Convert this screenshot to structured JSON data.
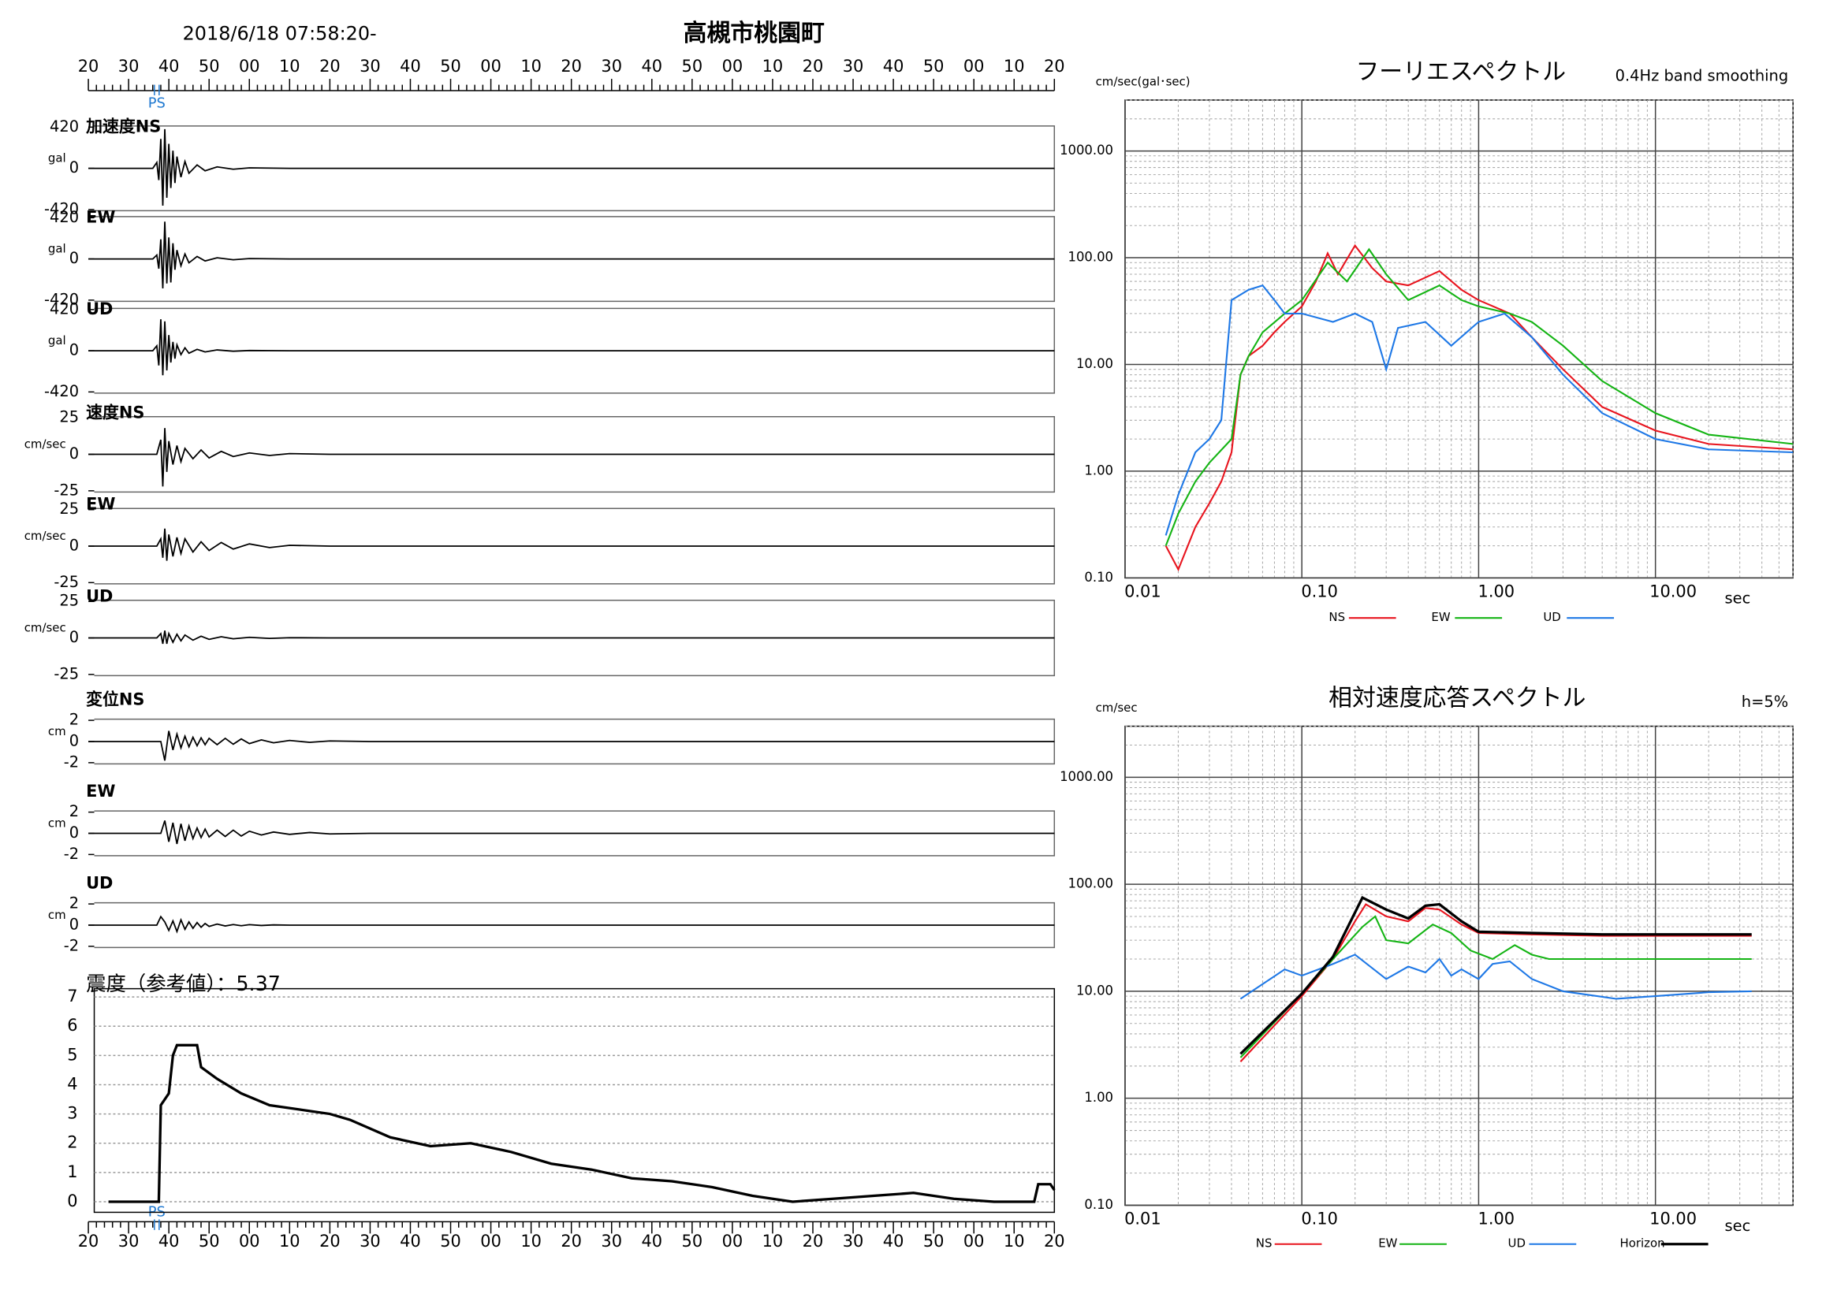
{
  "header": {
    "datetime": "2018/6/18 07:58:20-",
    "station": "高槻市桃園町"
  },
  "chart_data": [
    {
      "type": "time_axis",
      "xlim": [
        0,
        240
      ],
      "xticks": [
        {
          "value": 0,
          "label": "20"
        },
        {
          "value": 10,
          "label": "30"
        },
        {
          "value": 20,
          "label": "40"
        },
        {
          "value": 30,
          "label": "50"
        },
        {
          "value": 40,
          "label": "00"
        },
        {
          "value": 50,
          "label": "10"
        },
        {
          "value": 60,
          "label": "20"
        },
        {
          "value": 70,
          "label": "30"
        },
        {
          "value": 80,
          "label": "40"
        },
        {
          "value": 90,
          "label": "50"
        },
        {
          "value": 100,
          "label": "00"
        },
        {
          "value": 110,
          "label": "10"
        },
        {
          "value": 120,
          "label": "20"
        },
        {
          "value": 130,
          "label": "30"
        },
        {
          "value": 140,
          "label": "40"
        },
        {
          "value": 150,
          "label": "50"
        },
        {
          "value": 160,
          "label": "00"
        },
        {
          "value": 170,
          "label": "10"
        },
        {
          "value": 180,
          "label": "20"
        },
        {
          "value": 190,
          "label": "30"
        },
        {
          "value": 200,
          "label": "40"
        },
        {
          "value": 210,
          "label": "50"
        },
        {
          "value": 220,
          "label": "00"
        },
        {
          "value": 230,
          "label": "10"
        },
        {
          "value": 240,
          "label": "20"
        }
      ],
      "minor_ticks": true,
      "ps_label": "PS",
      "ps_x": 17,
      "ps_color": "#1e78d0"
    },
    {
      "type": "waveform",
      "title": "加速度NS",
      "y_label": "gal",
      "ylim": [
        -420,
        420
      ],
      "yticks": [
        420,
        0,
        -420
      ],
      "color": "#000000",
      "x": [
        0,
        16,
        17,
        17.5,
        18,
        18.5,
        19,
        19.5,
        20,
        20.5,
        21,
        21.5,
        22,
        23,
        24,
        25,
        27,
        29,
        32,
        36,
        40,
        50,
        240
      ],
      "values": [
        0,
        0,
        60,
        -120,
        300,
        -380,
        400,
        -300,
        250,
        -200,
        180,
        -150,
        120,
        -90,
        70,
        -50,
        35,
        -25,
        15,
        -10,
        5,
        0,
        0
      ]
    },
    {
      "type": "waveform",
      "title": "EW",
      "y_label": "gal",
      "ylim": [
        -420,
        420
      ],
      "yticks": [
        420,
        0,
        -420
      ],
      "color": "#000000",
      "x": [
        0,
        16,
        17,
        17.5,
        18,
        18.5,
        19,
        19.5,
        20,
        20.5,
        21,
        21.5,
        22,
        23,
        24,
        25,
        27,
        29,
        32,
        36,
        40,
        50,
        240
      ],
      "values": [
        0,
        0,
        40,
        -100,
        200,
        -300,
        380,
        -250,
        220,
        -240,
        160,
        -110,
        90,
        -70,
        50,
        -40,
        25,
        -20,
        12,
        -8,
        4,
        0,
        0
      ]
    },
    {
      "type": "waveform",
      "title": "UD",
      "y_label": "gal",
      "ylim": [
        -420,
        420
      ],
      "yticks": [
        420,
        0,
        -420
      ],
      "color": "#000000",
      "x": [
        0,
        16,
        17,
        17.5,
        18,
        18.5,
        19,
        19.5,
        20,
        20.5,
        21,
        21.5,
        22,
        23,
        24,
        25,
        27,
        29,
        32,
        36,
        40,
        50,
        240
      ],
      "values": [
        0,
        0,
        50,
        -150,
        320,
        -250,
        300,
        -200,
        160,
        -120,
        90,
        -80,
        60,
        -40,
        30,
        -25,
        15,
        -12,
        8,
        -5,
        3,
        0,
        0
      ]
    },
    {
      "type": "waveform",
      "title": "速度NS",
      "y_label": "cm/sec",
      "ylim": [
        -25,
        25
      ],
      "yticks": [
        25,
        0,
        -25
      ],
      "color": "#000000",
      "x": [
        0,
        17,
        18,
        18.5,
        19,
        19.5,
        20,
        21,
        22,
        23,
        24,
        26,
        28,
        30,
        33,
        36,
        40,
        45,
        50,
        60,
        240
      ],
      "values": [
        0,
        0,
        10,
        -22,
        18,
        -12,
        9,
        -7,
        6,
        -5,
        4,
        -3,
        3,
        -2.5,
        2,
        -1.5,
        1,
        -0.8,
        0.5,
        0,
        0
      ]
    },
    {
      "type": "waveform",
      "title": "EW",
      "y_label": "cm/sec",
      "ylim": [
        -25,
        25
      ],
      "yticks": [
        25,
        0,
        -25
      ],
      "color": "#000000",
      "x": [
        0,
        17,
        18,
        18.5,
        19,
        19.5,
        20,
        21,
        22,
        23,
        24,
        26,
        28,
        30,
        33,
        36,
        40,
        45,
        50,
        60,
        240
      ],
      "values": [
        0,
        0,
        5,
        -8,
        12,
        -10,
        8,
        -7,
        6,
        -5,
        5,
        -4,
        3,
        -3,
        2.5,
        -2,
        1.5,
        -1,
        0.6,
        0,
        0
      ]
    },
    {
      "type": "waveform",
      "title": "UD",
      "y_label": "cm/sec",
      "ylim": [
        -25,
        25
      ],
      "yticks": [
        25,
        0,
        -25
      ],
      "color": "#000000",
      "x": [
        0,
        17,
        18,
        18.5,
        19,
        19.5,
        20,
        21,
        22,
        23,
        24,
        26,
        28,
        30,
        33,
        36,
        40,
        45,
        50,
        60,
        240
      ],
      "values": [
        0,
        0,
        3,
        -4,
        5,
        -4,
        3,
        -3,
        2.5,
        -2,
        2,
        -1.5,
        1.2,
        -1,
        0.8,
        -0.6,
        0.4,
        -0.3,
        0.2,
        0,
        0
      ]
    },
    {
      "type": "waveform",
      "title": "変位NS",
      "y_label": "cm",
      "ylim": [
        -2,
        2
      ],
      "yticks": [
        2,
        0,
        -2
      ],
      "color": "#000000",
      "x": [
        0,
        18,
        19,
        20,
        21,
        22,
        23,
        24,
        25,
        26,
        27,
        28,
        29,
        30,
        32,
        34,
        36,
        38,
        40,
        43,
        46,
        50,
        55,
        60,
        70,
        240
      ],
      "values": [
        0,
        0,
        -1.8,
        1.0,
        -0.8,
        0.7,
        -0.6,
        0.5,
        -0.5,
        0.4,
        -0.4,
        0.35,
        -0.3,
        0.3,
        -0.3,
        0.3,
        -0.25,
        0.25,
        -0.2,
        0.15,
        -0.12,
        0.1,
        -0.08,
        0.05,
        0,
        0
      ]
    },
    {
      "type": "waveform",
      "title": "EW",
      "y_label": "cm",
      "ylim": [
        -2,
        2
      ],
      "yticks": [
        2,
        0,
        -2
      ],
      "color": "#000000",
      "x": [
        0,
        18,
        19,
        20,
        21,
        22,
        23,
        24,
        25,
        26,
        27,
        28,
        29,
        30,
        32,
        34,
        36,
        38,
        40,
        43,
        46,
        50,
        55,
        60,
        70,
        240
      ],
      "values": [
        0,
        0,
        1.2,
        -0.8,
        1.0,
        -1.0,
        0.9,
        -0.7,
        0.7,
        -0.5,
        0.5,
        -0.4,
        0.4,
        -0.35,
        0.3,
        -0.3,
        0.3,
        -0.25,
        0.2,
        -0.15,
        0.12,
        -0.1,
        0.08,
        -0.05,
        0,
        0
      ]
    },
    {
      "type": "waveform",
      "title": "UD",
      "y_label": "cm",
      "ylim": [
        -2,
        2
      ],
      "yticks": [
        2,
        0,
        -2
      ],
      "color": "#000000",
      "x": [
        0,
        17,
        18,
        19,
        20,
        21,
        22,
        23,
        24,
        25,
        26,
        27,
        28,
        29,
        30,
        32,
        34,
        36,
        38,
        40,
        43,
        46,
        50,
        55,
        60,
        240
      ],
      "values": [
        0,
        0,
        0.8,
        0.3,
        -0.5,
        0.4,
        -0.6,
        0.5,
        -0.4,
        0.3,
        -0.3,
        0.25,
        -0.2,
        0.15,
        -0.12,
        0.1,
        -0.08,
        0.06,
        -0.05,
        0.04,
        -0.03,
        0.02,
        0,
        0,
        0,
        0
      ]
    },
    {
      "type": "intensity",
      "title": "震度（参考値）：5.37",
      "ylim": [
        0,
        7
      ],
      "yticks": [
        0,
        1,
        2,
        3,
        4,
        5,
        6,
        7
      ],
      "grid": true,
      "color": "#000000",
      "x": [
        5,
        17.5,
        18,
        20,
        21,
        22,
        27,
        28,
        32,
        38,
        45,
        55,
        60,
        65,
        75,
        85,
        95,
        105,
        115,
        125,
        135,
        145,
        155,
        165,
        175,
        185,
        195,
        205,
        215,
        225,
        235,
        236,
        239,
        240
      ],
      "values": [
        0,
        0,
        3.3,
        3.7,
        5.0,
        5.35,
        5.35,
        4.6,
        4.2,
        3.7,
        3.3,
        3.1,
        3.0,
        2.8,
        2.2,
        1.9,
        2.0,
        1.7,
        1.3,
        1.1,
        0.8,
        0.7,
        0.5,
        0.2,
        0,
        0.1,
        0.2,
        0.3,
        0.1,
        0,
        0,
        0.6,
        0.6,
        0.4
      ]
    },
    {
      "type": "log_line",
      "title": "フーリエスペクトル",
      "subtitle": "0.4Hz band smoothing",
      "y_label": "cm/sec(gal･sec)",
      "x_label": "sec",
      "xlog": true,
      "ylog": true,
      "minor_grid": true,
      "xlim": [
        0.01,
        60
      ],
      "ylim": [
        0.1,
        3000
      ],
      "xticks": [
        {
          "value": 0.01,
          "label": "0.01"
        },
        {
          "value": 0.1,
          "label": "0.10"
        },
        {
          "value": 1,
          "label": "1.00"
        },
        {
          "value": 10,
          "label": "10.00"
        }
      ],
      "yticks": [
        {
          "value": 0.1,
          "label": "0.10"
        },
        {
          "value": 1,
          "label": "1.00"
        },
        {
          "value": 10,
          "label": "10.00"
        },
        {
          "value": 100,
          "label": "100.00"
        },
        {
          "value": 1000,
          "label": "1000.00"
        }
      ],
      "series": [
        {
          "name": "NS",
          "color": "#e8141e",
          "x": [
            0.017,
            0.02,
            0.025,
            0.03,
            0.035,
            0.04,
            0.045,
            0.05,
            0.06,
            0.07,
            0.08,
            0.1,
            0.12,
            0.14,
            0.16,
            0.2,
            0.25,
            0.3,
            0.4,
            0.6,
            0.8,
            1,
            1.5,
            2,
            3,
            5,
            10,
            20,
            60
          ],
          "values": [
            0.2,
            0.12,
            0.3,
            0.5,
            0.8,
            1.5,
            8,
            12,
            15,
            20,
            25,
            35,
            60,
            110,
            70,
            130,
            80,
            60,
            55,
            75,
            50,
            40,
            30,
            18,
            9,
            4,
            2.4,
            1.8,
            1.6
          ]
        },
        {
          "name": "EW",
          "color": "#14b414",
          "x": [
            0.017,
            0.02,
            0.025,
            0.03,
            0.04,
            0.045,
            0.05,
            0.06,
            0.08,
            0.1,
            0.14,
            0.18,
            0.24,
            0.3,
            0.4,
            0.6,
            0.8,
            1,
            1.5,
            2,
            3,
            5,
            10,
            20,
            60
          ],
          "values": [
            0.2,
            0.4,
            0.8,
            1.2,
            2,
            8,
            12,
            20,
            30,
            40,
            90,
            60,
            120,
            70,
            40,
            55,
            40,
            35,
            30,
            25,
            15,
            7,
            3.5,
            2.2,
            1.8
          ]
        },
        {
          "name": "UD",
          "color": "#1e78e6",
          "x": [
            0.017,
            0.02,
            0.025,
            0.03,
            0.035,
            0.04,
            0.05,
            0.06,
            0.07,
            0.08,
            0.1,
            0.15,
            0.2,
            0.25,
            0.3,
            0.35,
            0.5,
            0.7,
            1,
            1.4,
            2,
            3,
            5,
            10,
            20,
            60
          ],
          "values": [
            0.25,
            0.6,
            1.5,
            2,
            3,
            40,
            50,
            55,
            40,
            30,
            30,
            25,
            30,
            25,
            9,
            22,
            25,
            15,
            25,
            30,
            18,
            8,
            3.5,
            2,
            1.6,
            1.5
          ]
        }
      ]
    },
    {
      "type": "log_line",
      "title": "相対速度応答スペクトル",
      "subtitle": "h=5%",
      "y_label": "cm/sec",
      "x_label": "sec",
      "xlog": true,
      "ylog": true,
      "minor_grid": true,
      "xlim": [
        0.01,
        60
      ],
      "ylim": [
        0.1,
        3000
      ],
      "xticks": [
        {
          "value": 0.01,
          "label": "0.01"
        },
        {
          "value": 0.1,
          "label": "0.10"
        },
        {
          "value": 1,
          "label": "1.00"
        },
        {
          "value": 10,
          "label": "10.00"
        }
      ],
      "yticks": [
        {
          "value": 0.1,
          "label": "0.10"
        },
        {
          "value": 1,
          "label": "1.00"
        },
        {
          "value": 10,
          "label": "10.00"
        },
        {
          "value": 100,
          "label": "100.00"
        },
        {
          "value": 1000,
          "label": "1000.00"
        }
      ],
      "series": [
        {
          "name": "NS",
          "color": "#e8141e",
          "x": [
            0.045,
            0.1,
            0.15,
            0.2,
            0.23,
            0.3,
            0.4,
            0.5,
            0.6,
            0.8,
            1,
            2,
            5,
            10,
            35
          ],
          "values": [
            2.2,
            9,
            20,
            45,
            65,
            50,
            45,
            60,
            58,
            42,
            35,
            34,
            33,
            33,
            33
          ]
        },
        {
          "name": "EW",
          "color": "#14b414",
          "x": [
            0.045,
            0.1,
            0.15,
            0.22,
            0.26,
            0.3,
            0.4,
            0.55,
            0.7,
            0.9,
            1.2,
            1.6,
            2,
            2.5,
            3,
            10,
            35
          ],
          "values": [
            2.4,
            9.5,
            20,
            40,
            50,
            30,
            28,
            42,
            35,
            24,
            20,
            27,
            22,
            20,
            20,
            20,
            20
          ]
        },
        {
          "name": "UD",
          "color": "#1e78e6",
          "x": [
            0.045,
            0.08,
            0.1,
            0.15,
            0.2,
            0.3,
            0.4,
            0.5,
            0.6,
            0.7,
            0.8,
            1,
            1.2,
            1.5,
            2,
            3,
            6,
            10,
            20,
            35
          ],
          "values": [
            8.5,
            16,
            14,
            18,
            22,
            13,
            17,
            15,
            20,
            14,
            16,
            13,
            18,
            19,
            13,
            10,
            8.5,
            9,
            9.8,
            10
          ]
        },
        {
          "name": "Horizon",
          "color": "#000000",
          "x": [
            0.045,
            0.1,
            0.15,
            0.22,
            0.3,
            0.4,
            0.5,
            0.6,
            0.8,
            1,
            2,
            5,
            10,
            35
          ],
          "values": [
            2.6,
            9.5,
            21,
            75,
            58,
            48,
            63,
            65,
            45,
            36,
            35,
            34,
            34,
            34
          ]
        }
      ]
    }
  ]
}
